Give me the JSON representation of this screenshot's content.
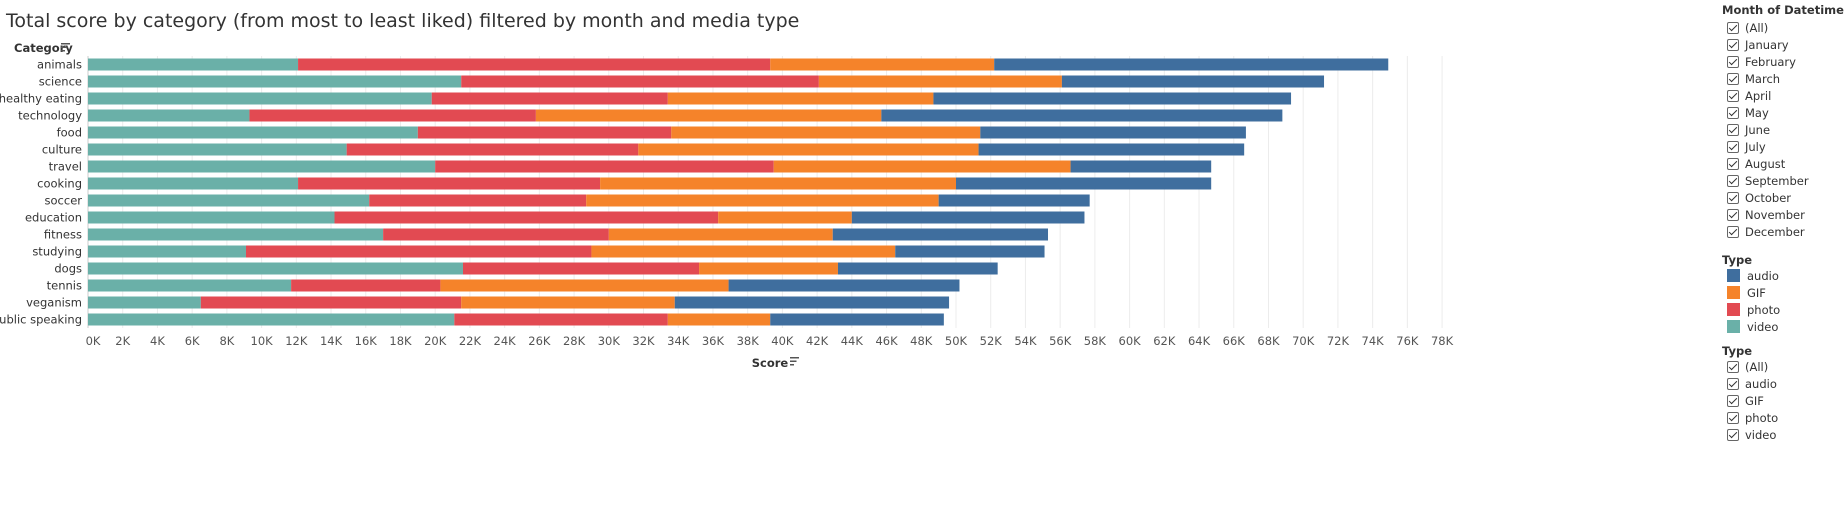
{
  "chart_data": {
    "type": "bar",
    "orientation": "horizontal",
    "stacked": true,
    "title": "Total score by category  (from most to least liked) filtered by month and media type",
    "ylabel": "Category",
    "xlabel": "Score",
    "xlim": [
      0,
      78000
    ],
    "x_ticks": [
      "0K",
      "2K",
      "4K",
      "6K",
      "8K",
      "10K",
      "12K",
      "14K",
      "16K",
      "18K",
      "20K",
      "22K",
      "24K",
      "26K",
      "28K",
      "30K",
      "32K",
      "34K",
      "36K",
      "38K",
      "40K",
      "42K",
      "44K",
      "46K",
      "48K",
      "50K",
      "52K",
      "54K",
      "56K",
      "58K",
      "60K",
      "62K",
      "64K",
      "66K",
      "68K",
      "70K",
      "72K",
      "74K",
      "76K",
      "78K"
    ],
    "x_tick_values": [
      0,
      2000,
      4000,
      6000,
      8000,
      10000,
      12000,
      14000,
      16000,
      18000,
      20000,
      22000,
      24000,
      26000,
      28000,
      30000,
      32000,
      34000,
      36000,
      38000,
      40000,
      42000,
      44000,
      46000,
      48000,
      50000,
      52000,
      54000,
      56000,
      58000,
      60000,
      62000,
      64000,
      66000,
      68000,
      70000,
      72000,
      74000,
      76000,
      78000
    ],
    "grid": "vertical",
    "categories": [
      "animals",
      "science",
      "healthy eating",
      "technology",
      "food",
      "culture",
      "travel",
      "cooking",
      "soccer",
      "education",
      "fitness",
      "studying",
      "dogs",
      "tennis",
      "veganism",
      "public speaking"
    ],
    "series": [
      {
        "name": "video",
        "color": "#6AB0A8",
        "values": [
          12100,
          21500,
          19800,
          9300,
          19000,
          14900,
          20000,
          12100,
          16200,
          14200,
          17000,
          9100,
          21600,
          11700,
          6500,
          21100
        ]
      },
      {
        "name": "photo",
        "color": "#E24A52",
        "values": [
          27200,
          20600,
          13600,
          16500,
          14600,
          16800,
          19500,
          17400,
          12500,
          22100,
          13000,
          19900,
          13600,
          8600,
          15000,
          12300
        ]
      },
      {
        "name": "GIF",
        "color": "#F5832A",
        "values": [
          12900,
          14000,
          15300,
          19900,
          17800,
          19600,
          17100,
          20500,
          20300,
          7700,
          12900,
          17500,
          8000,
          16600,
          12300,
          5900
        ]
      },
      {
        "name": "audio",
        "color": "#3F6E9E",
        "values": [
          22700,
          15100,
          20600,
          23100,
          15300,
          15300,
          8100,
          14700,
          8700,
          13400,
          12400,
          8600,
          9200,
          13300,
          15800,
          10000
        ]
      }
    ]
  },
  "header": {
    "title": "Total score by category  (from most to least liked) filtered by month and media type"
  },
  "month_filter": {
    "title": "Month of Datetime",
    "items": [
      "(All)",
      "January",
      "February",
      "March",
      "April",
      "May",
      "June",
      "July",
      "August",
      "September",
      "October",
      "November",
      "December"
    ]
  },
  "type_legend": {
    "title": "Type",
    "items": [
      {
        "label": "audio",
        "color": "#3F6E9E"
      },
      {
        "label": "GIF",
        "color": "#F5832A"
      },
      {
        "label": "photo",
        "color": "#E24A52"
      },
      {
        "label": "video",
        "color": "#6AB0A8"
      }
    ]
  },
  "type_filter": {
    "title": "Type",
    "items": [
      "(All)",
      "audio",
      "GIF",
      "photo",
      "video"
    ]
  }
}
